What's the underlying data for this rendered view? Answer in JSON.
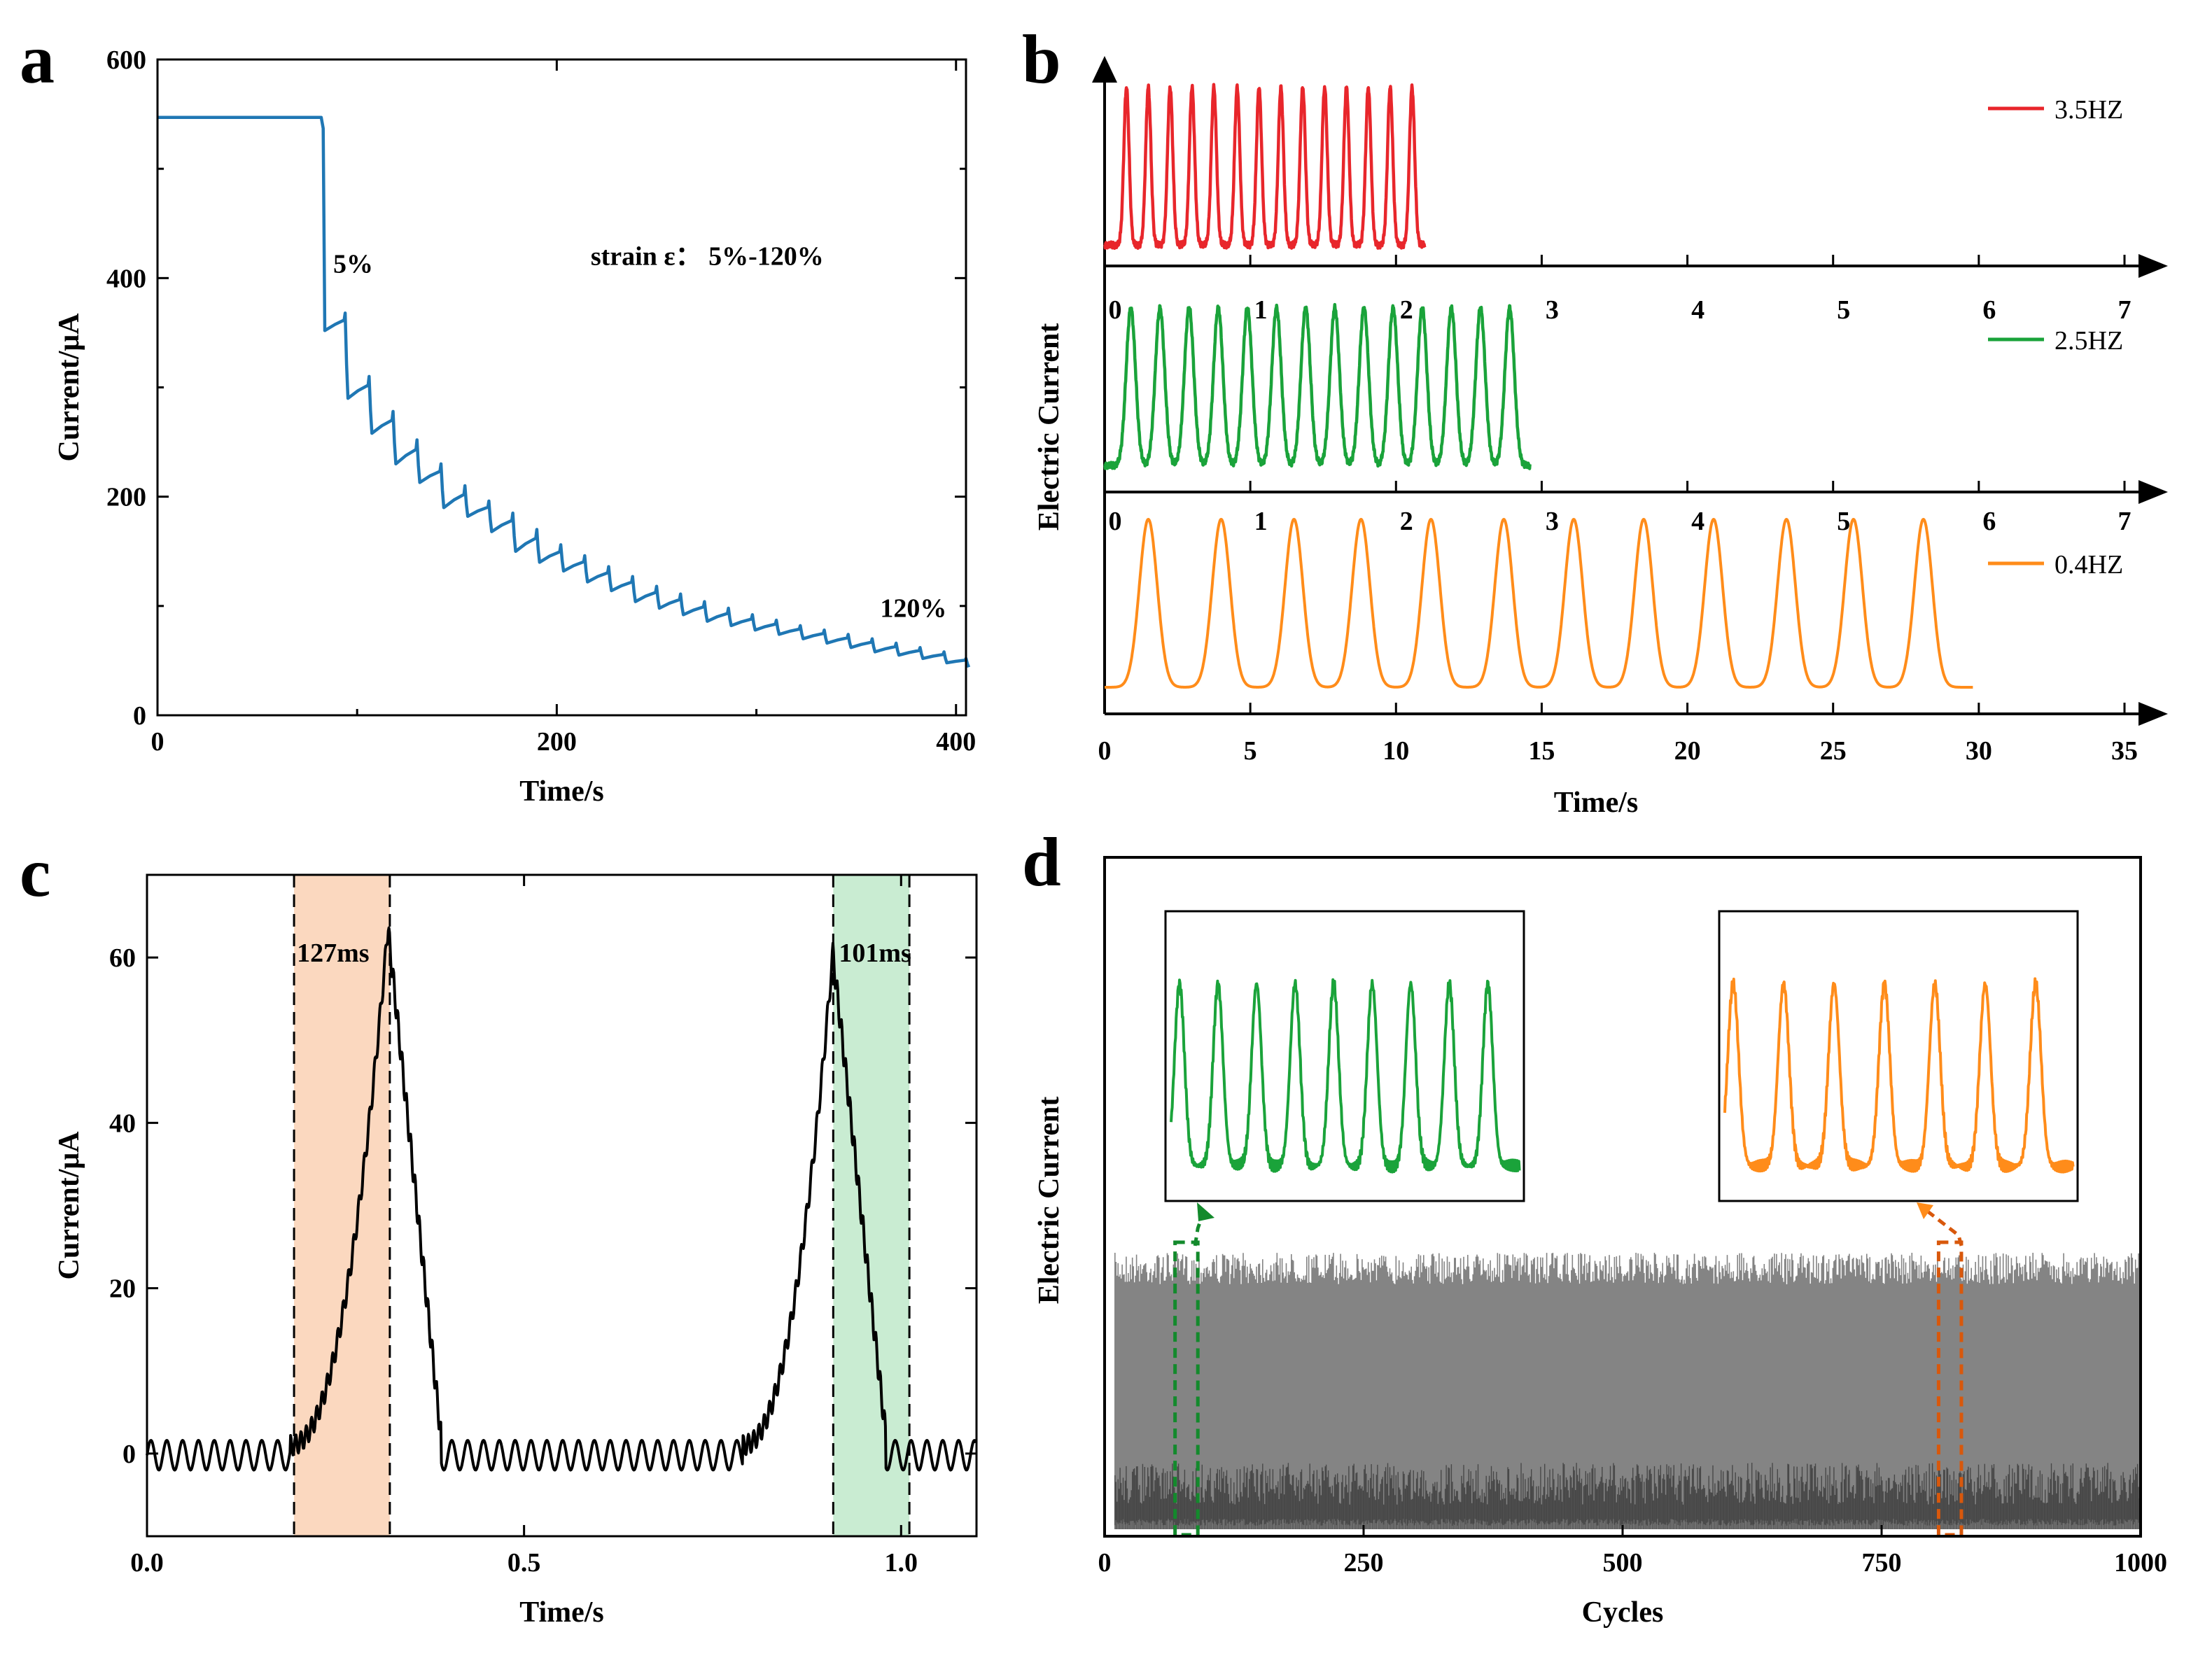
{
  "panels": {
    "a": {
      "letter": "a"
    },
    "b": {
      "letter": "b"
    },
    "c": {
      "letter": "c"
    },
    "d": {
      "letter": "d"
    }
  },
  "chart_data": [
    {
      "id": "a",
      "type": "line",
      "xlabel": "Time/s",
      "ylabel": "Current/μA",
      "xlim": [
        0,
        405
      ],
      "ylim": [
        0,
        600
      ],
      "xticks": [
        0,
        200,
        400
      ],
      "yticks": [
        0,
        200,
        400,
        600
      ],
      "color": "#1f77b4",
      "baseline": 547,
      "drop_time": 82,
      "steps": [
        {
          "t": 83,
          "peak": 547,
          "low": 352
        },
        {
          "t": 94,
          "peak": 368,
          "low": 290
        },
        {
          "t": 106,
          "peak": 310,
          "low": 258
        },
        {
          "t": 118,
          "peak": 278,
          "low": 230
        },
        {
          "t": 130,
          "peak": 252,
          "low": 213
        },
        {
          "t": 142,
          "peak": 230,
          "low": 190
        },
        {
          "t": 154,
          "peak": 210,
          "low": 182
        },
        {
          "t": 166,
          "peak": 196,
          "low": 168
        },
        {
          "t": 178,
          "peak": 185,
          "low": 150
        },
        {
          "t": 190,
          "peak": 170,
          "low": 140
        },
        {
          "t": 202,
          "peak": 156,
          "low": 132
        },
        {
          "t": 214,
          "peak": 146,
          "low": 122
        },
        {
          "t": 226,
          "peak": 136,
          "low": 114
        },
        {
          "t": 238,
          "peak": 127,
          "low": 104
        },
        {
          "t": 250,
          "peak": 118,
          "low": 98
        },
        {
          "t": 262,
          "peak": 111,
          "low": 92
        },
        {
          "t": 274,
          "peak": 104,
          "low": 86
        },
        {
          "t": 286,
          "peak": 98,
          "low": 82
        },
        {
          "t": 298,
          "peak": 92,
          "low": 78
        },
        {
          "t": 310,
          "peak": 87,
          "low": 74
        },
        {
          "t": 322,
          "peak": 82,
          "low": 70
        },
        {
          "t": 334,
          "peak": 78,
          "low": 66
        },
        {
          "t": 346,
          "peak": 74,
          "low": 62
        },
        {
          "t": 358,
          "peak": 70,
          "low": 58
        },
        {
          "t": 370,
          "peak": 66,
          "low": 55
        },
        {
          "t": 382,
          "peak": 62,
          "low": 52
        },
        {
          "t": 394,
          "peak": 58,
          "low": 48
        },
        {
          "t": 405,
          "peak": 52,
          "low": 44
        }
      ],
      "annotations": [
        {
          "text": "5%",
          "x": 88,
          "y": 405
        },
        {
          "text": "strain ε：  5%-120%",
          "x": 217,
          "y": 412
        },
        {
          "text": "120%",
          "x": 362,
          "y": 90
        }
      ]
    },
    {
      "id": "b",
      "type": "line",
      "xlabel": "Time/s",
      "ylabel": "Electric Current",
      "series": [
        {
          "name": "3.5HZ",
          "color": "#e8262b",
          "xlim": [
            0,
            7
          ],
          "xticks": [
            0,
            1,
            2,
            3,
            4,
            5,
            6,
            7
          ],
          "peaks": [
            0.15,
            0.3,
            0.45,
            0.6,
            0.75,
            0.91,
            1.06,
            1.21,
            1.36,
            1.51,
            1.66,
            1.81,
            1.96,
            2.11
          ],
          "x_end": 2.2,
          "shape": "spike"
        },
        {
          "name": "2.5HZ",
          "color": "#1aa33a",
          "xlim": [
            0,
            7
          ],
          "xticks": [
            0,
            1,
            2,
            3,
            4,
            5,
            6,
            7
          ],
          "peaks": [
            0.18,
            0.38,
            0.58,
            0.78,
            0.98,
            1.18,
            1.38,
            1.58,
            1.78,
            1.98,
            2.18,
            2.38,
            2.58,
            2.78
          ],
          "x_end": 2.92,
          "shape": "peak"
        },
        {
          "name": "0.4HZ",
          "color": "#ff8c1a",
          "xlim": [
            0,
            35
          ],
          "xticks": [
            0,
            5,
            10,
            15,
            20,
            25,
            30,
            35
          ],
          "peaks": [
            1.5,
            4.0,
            6.5,
            8.8,
            11.2,
            13.7,
            16.1,
            18.5,
            20.9,
            23.4,
            25.7,
            28.1
          ],
          "x_end": 29.8,
          "shape": "broad"
        }
      ]
    },
    {
      "id": "c",
      "type": "line",
      "xlabel": "Time/s",
      "ylabel": "Current/μA",
      "xlim": [
        0,
        1.1
      ],
      "ylim": [
        -10,
        70
      ],
      "xticks": [
        0.0,
        0.5,
        1.0
      ],
      "xtick_labels": [
        "0.0",
        "0.5",
        "1.0"
      ],
      "yticks": [
        0,
        20,
        40,
        60
      ],
      "color": "#000000",
      "pulses": [
        {
          "rise_start": 0.19,
          "peak_t": 0.32,
          "peak": 63,
          "fall_end": 0.39
        },
        {
          "rise_start": 0.79,
          "peak_t": 0.91,
          "peak": 60,
          "fall_end": 0.98
        }
      ],
      "shaded": [
        {
          "x0": 0.195,
          "x1": 0.322,
          "color": "#fbd8bf",
          "label": "127ms"
        },
        {
          "x0": 0.91,
          "x1": 1.011,
          "color": "#c9ecd2",
          "label": "101ms"
        }
      ]
    },
    {
      "id": "d",
      "type": "line",
      "xlabel": "Cycles",
      "ylabel": "Electric Current",
      "xlim": [
        0,
        1000
      ],
      "xticks": [
        0,
        250,
        500,
        750,
        1000
      ],
      "color": "#6e6e6e",
      "highlight": [
        {
          "x0": 68,
          "x1": 90,
          "color": "#138a2c"
        },
        {
          "x0": 805,
          "x1": 827,
          "color": "#d8580c"
        }
      ],
      "insets": [
        {
          "color": "#1aa33a",
          "peaks": 9
        },
        {
          "color": "#ff8c1a",
          "peaks": 7
        }
      ]
    }
  ]
}
